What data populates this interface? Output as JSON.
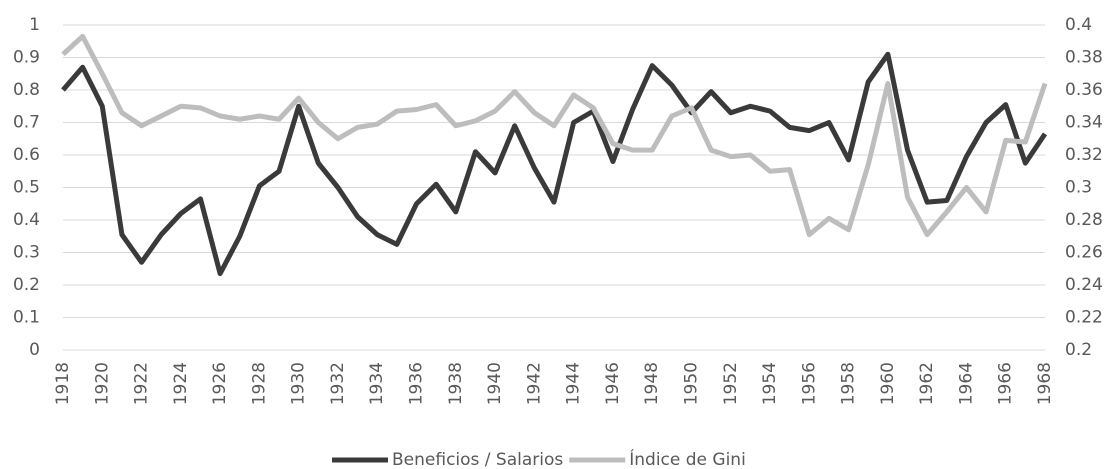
{
  "chart_data": {
    "type": "line",
    "x": [
      1918,
      1919,
      1920,
      1921,
      1922,
      1923,
      1924,
      1925,
      1926,
      1927,
      1928,
      1929,
      1930,
      1931,
      1932,
      1933,
      1934,
      1935,
      1936,
      1937,
      1938,
      1939,
      1940,
      1941,
      1942,
      1943,
      1944,
      1945,
      1946,
      1947,
      1948,
      1949,
      1950,
      1951,
      1952,
      1953,
      1954,
      1955,
      1956,
      1957,
      1958,
      1959,
      1960,
      1961,
      1962,
      1963,
      1964,
      1965,
      1966,
      1967,
      1968
    ],
    "xlim": [
      1918,
      1968
    ],
    "xticks": [
      1918,
      1920,
      1922,
      1924,
      1926,
      1928,
      1930,
      1932,
      1934,
      1936,
      1938,
      1940,
      1942,
      1944,
      1946,
      1948,
      1950,
      1952,
      1954,
      1956,
      1958,
      1960,
      1962,
      1964,
      1966,
      1968
    ],
    "ylim": [
      0,
      1
    ],
    "yticks": [
      0,
      0.1,
      0.2,
      0.3,
      0.4,
      0.5,
      0.6,
      0.7,
      0.8,
      0.9,
      1
    ],
    "y2lim": [
      0.2,
      0.4
    ],
    "y2ticks": [
      0.2,
      0.22,
      0.24,
      0.26,
      0.28,
      0.3,
      0.32,
      0.34,
      0.36,
      0.38,
      0.4
    ],
    "grid": true,
    "legend": "bottom",
    "series": [
      {
        "name": "Beneficios / Salarios",
        "color": "#3a3a3a",
        "values": [
          0.8,
          0.87,
          0.75,
          0.355,
          0.27,
          0.355,
          0.42,
          0.465,
          0.235,
          0.35,
          0.505,
          0.55,
          0.75,
          0.575,
          0.5,
          0.41,
          0.355,
          0.325,
          0.45,
          0.51,
          0.425,
          0.61,
          0.545,
          0.69,
          0.56,
          0.455,
          0.7,
          0.735,
          0.58,
          0.74,
          0.875,
          0.815,
          0.73,
          0.795,
          0.73,
          0.75,
          0.735,
          0.685,
          0.675,
          0.7,
          0.585,
          0.825,
          0.91,
          0.615,
          0.455,
          0.46,
          0.595,
          0.7,
          0.755,
          0.575,
          0.665
        ]
      },
      {
        "name": "Índice de Gini",
        "color": "#bdbdbd",
        "axis": "y2",
        "values": [
          0.382,
          0.393,
          0.37,
          0.346,
          0.338,
          0.344,
          0.35,
          0.349,
          0.344,
          0.342,
          0.344,
          0.342,
          0.355,
          0.34,
          0.33,
          0.337,
          0.339,
          0.347,
          0.348,
          0.351,
          0.338,
          0.341,
          0.347,
          0.359,
          0.346,
          0.338,
          0.357,
          0.349,
          0.327,
          0.323,
          0.323,
          0.344,
          0.349,
          0.323,
          0.319,
          0.32,
          0.31,
          0.311,
          0.271,
          0.281,
          0.274,
          0.314,
          0.364,
          0.294,
          0.271,
          0.285,
          0.3,
          0.285,
          0.329,
          0.328,
          0.364
        ]
      }
    ]
  }
}
